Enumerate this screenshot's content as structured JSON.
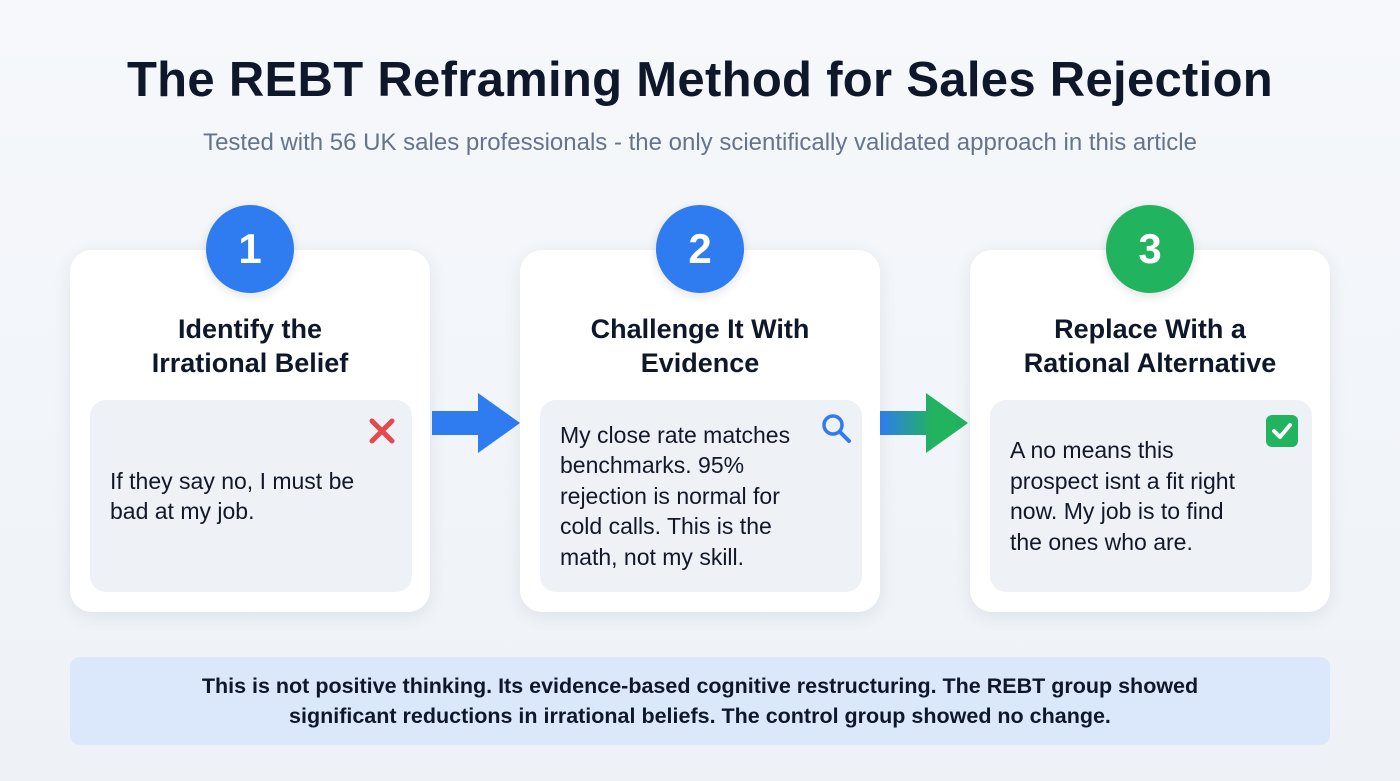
{
  "title": "The REBT Reframing Method for Sales Rejection",
  "subtitle": "Tested with 56 UK sales professionals - the only scientifically validated approach in this article",
  "steps": [
    {
      "number": "1",
      "title_line1": "Identify the",
      "title_line2": "Irrational Belief",
      "text": "If they say no, I must be bad at my job.",
      "icon": "x-icon",
      "color": "#2f7cf0"
    },
    {
      "number": "2",
      "title_line1": "Challenge It With",
      "title_line2": "Evidence",
      "text": "My close rate matches benchmarks. 95% rejection is normal for cold calls. This is the math, not my skill.",
      "icon": "magnifier-icon",
      "color": "#2f7cf0"
    },
    {
      "number": "3",
      "title_line1": "Replace With a",
      "title_line2": "Rational Alternative",
      "text": "A no means this prospect isnt a fit right now. My job is to find the ones who are.",
      "icon": "check-icon",
      "color": "#22b35e"
    }
  ],
  "note_line1": "This is not positive thinking. Its evidence-based cognitive restructuring. The REBT group showed",
  "note_line2": "significant reductions in irrational beliefs. The control group showed no change."
}
